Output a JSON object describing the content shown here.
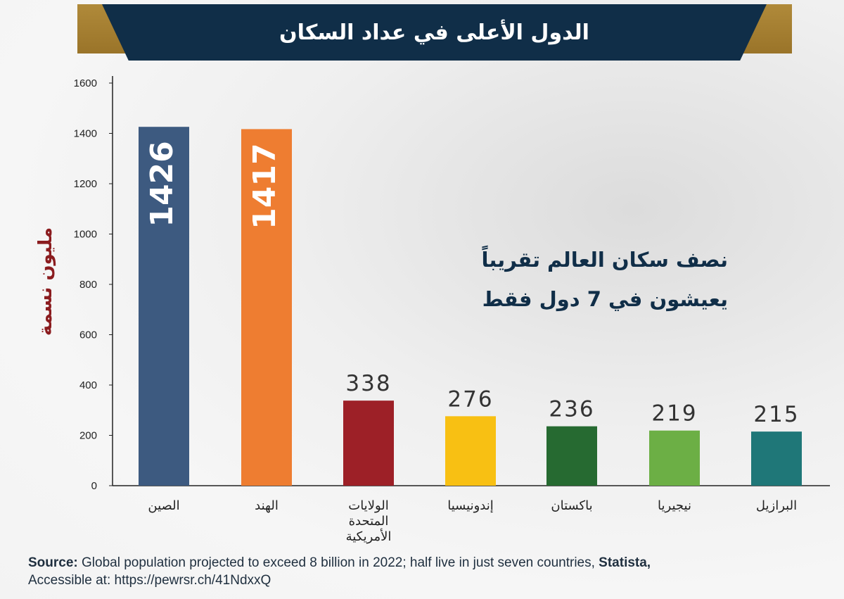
{
  "header": {
    "title": "الدول الأعلى في عداد السكان"
  },
  "annotation": {
    "line1": "نصف سكان العالم تقريباً",
    "line2": "يعيشون في 7 دول فقط"
  },
  "source": {
    "label": "Source:",
    "text": "Global population projected to exceed 8 billion in 2022; half live in just seven countries,",
    "publisher": "Statista,",
    "access": "Accessible at: https://pewrsr.ch/41NdxxQ"
  },
  "colors": {
    "banner": "#102e48",
    "gold": "#a88232",
    "ylabel": "#8b1c1f"
  },
  "chart_data": {
    "type": "bar",
    "ylabel": "مليون نسمة",
    "ylim": [
      0,
      1600
    ],
    "yticks": [
      0,
      200,
      400,
      600,
      800,
      1000,
      1200,
      1400,
      1600
    ],
    "categories": [
      "الصين",
      "الهند",
      "الولايات المتحدة الأمريكية",
      "إندونيسيا",
      "باكستان",
      "نيجيريا",
      "البرازيل"
    ],
    "category_lines": [
      [
        "الصين"
      ],
      [
        "الهند"
      ],
      [
        "الولايات",
        "المتحدة",
        "الأمريكية"
      ],
      [
        "إندونيسيا"
      ],
      [
        "باكستان"
      ],
      [
        "نيجيريا"
      ],
      [
        "البرازيل"
      ]
    ],
    "values": [
      1426,
      1417,
      338,
      276,
      236,
      219,
      215
    ],
    "bar_colors": [
      "#3d5a80",
      "#ee7d31",
      "#9d2027",
      "#f8c013",
      "#266a31",
      "#6caf45",
      "#1f7778"
    ],
    "label_inside": [
      true,
      true,
      false,
      false,
      false,
      false,
      false
    ],
    "grid": false
  }
}
